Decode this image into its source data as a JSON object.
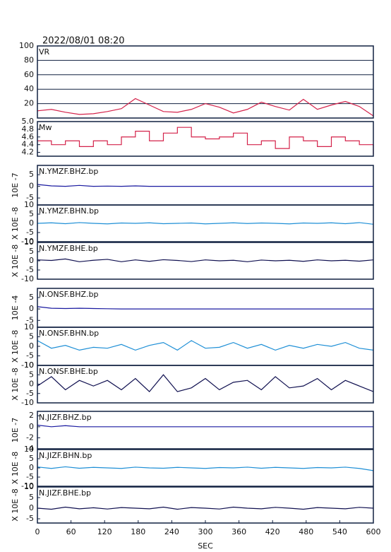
{
  "title": "2022/08/01 08:20",
  "chart_data": [
    {
      "type": "line",
      "label": "VR",
      "color": "#d4224a",
      "grid": true,
      "x": [
        0,
        25,
        50,
        75,
        100,
        125,
        150,
        175,
        200,
        225,
        250,
        275,
        300,
        325,
        350,
        375,
        400,
        425,
        450,
        475,
        500,
        525,
        550,
        575,
        600
      ],
      "values": [
        10,
        12,
        8,
        5,
        6,
        9,
        13,
        27,
        18,
        9,
        8,
        12,
        20,
        15,
        7,
        12,
        22,
        16,
        11,
        26,
        12,
        18,
        23,
        16,
        3
      ],
      "xlim": [
        0,
        600
      ],
      "ylim": [
        0,
        100
      ],
      "yticks": [
        20,
        40,
        60,
        80,
        100
      ]
    },
    {
      "type": "line",
      "label": "Mw",
      "color": "#d4224a",
      "step": true,
      "x": [
        0,
        25,
        50,
        75,
        100,
        125,
        150,
        175,
        200,
        225,
        250,
        275,
        300,
        325,
        350,
        375,
        400,
        425,
        450,
        475,
        500,
        525,
        550,
        575,
        600
      ],
      "values": [
        4.5,
        4.4,
        4.5,
        4.35,
        4.5,
        4.4,
        4.6,
        4.75,
        4.5,
        4.7,
        4.85,
        4.6,
        4.55,
        4.6,
        4.7,
        4.4,
        4.5,
        4.3,
        4.6,
        4.5,
        4.35,
        4.6,
        4.5,
        4.4,
        4.15
      ],
      "xlim": [
        0,
        600
      ],
      "ylim": [
        4.1,
        5.0
      ],
      "yticks": [
        4.2,
        4.4,
        4.6,
        4.8,
        {
          "value": 5,
          "label": "5.0"
        }
      ]
    },
    {
      "type": "line",
      "label": "N.YMZF.BHZ.bp",
      "ylabel": "10E -7",
      "color": "#1a1aa0",
      "x": [
        0,
        25,
        50,
        75,
        100,
        125,
        150,
        175,
        200,
        225,
        250,
        275,
        300,
        325,
        350,
        375,
        400,
        425,
        450,
        475,
        500,
        525,
        550,
        575,
        600
      ],
      "values": [
        0.8,
        0.2,
        0,
        0.4,
        0,
        0.1,
        0,
        0.2,
        0,
        0,
        0,
        0,
        0,
        0,
        0,
        0,
        0,
        0,
        0,
        0,
        0,
        0,
        0,
        0,
        0
      ],
      "xlim": [
        0,
        600
      ],
      "ylim": [
        -8,
        9
      ],
      "yticks": [
        -5,
        0,
        5
      ]
    },
    {
      "type": "line",
      "label": "N.YMZF.BHN.bp",
      "ylabel": "X 10E -8",
      "color": "#1e8fd6",
      "x": [
        0,
        25,
        50,
        75,
        100,
        125,
        150,
        175,
        200,
        225,
        250,
        275,
        300,
        325,
        350,
        375,
        400,
        425,
        450,
        475,
        500,
        525,
        550,
        575,
        600
      ],
      "values": [
        0,
        0.3,
        -0.2,
        0.4,
        0,
        -0.3,
        0.2,
        0,
        0.3,
        -0.2,
        0,
        0.2,
        -0.3,
        0,
        0.3,
        -0.1,
        0.2,
        0,
        -0.3,
        0.2,
        0,
        0.3,
        -0.2,
        0.4,
        -0.5
      ],
      "xlim": [
        0,
        600
      ],
      "ylim": [
        -10,
        10
      ],
      "yticks": [
        -10,
        -5,
        0,
        5,
        10
      ]
    },
    {
      "type": "line",
      "label": "N.YMZF.BHE.bp",
      "ylabel": "X 10E -8",
      "color": "#101050",
      "x": [
        0,
        25,
        50,
        75,
        100,
        125,
        150,
        175,
        200,
        225,
        250,
        275,
        300,
        325,
        350,
        375,
        400,
        425,
        450,
        475,
        500,
        525,
        550,
        575,
        600
      ],
      "values": [
        0.5,
        0.2,
        1,
        -0.5,
        0.3,
        0.8,
        -0.5,
        0.5,
        -0.3,
        0.6,
        0.2,
        -0.4,
        0.5,
        0,
        0.3,
        -0.5,
        0.4,
        0,
        0.3,
        -0.3,
        0.5,
        0,
        0.3,
        -0.2,
        0.5
      ],
      "xlim": [
        0,
        600
      ],
      "ylim": [
        -10,
        10
      ],
      "yticks": [
        -10,
        -5,
        0,
        5,
        10
      ]
    },
    {
      "type": "line",
      "label": "N.ONSF.BHZ.bp",
      "ylabel": "10E -4",
      "color": "#1a1aa0",
      "x": [
        0,
        25,
        50,
        75,
        100,
        125,
        150,
        175,
        200,
        225,
        250,
        275,
        300,
        325,
        350,
        375,
        400,
        425,
        450,
        475,
        500,
        525,
        550,
        575,
        600
      ],
      "values": [
        1,
        0.3,
        0.2,
        0.3,
        0.2,
        0.1,
        0,
        0,
        0,
        0,
        0,
        0,
        0,
        0,
        0,
        0,
        0,
        0,
        0,
        0,
        0,
        0,
        0,
        0,
        0
      ],
      "xlim": [
        0,
        600
      ],
      "ylim": [
        -8,
        9
      ],
      "yticks": [
        -5,
        0,
        5
      ]
    },
    {
      "type": "line",
      "label": "N.ONSF.BHN.bp",
      "ylabel": "X 10E -8",
      "color": "#1e8fd6",
      "x": [
        0,
        25,
        50,
        75,
        100,
        125,
        150,
        175,
        200,
        225,
        250,
        275,
        300,
        325,
        350,
        375,
        400,
        425,
        450,
        475,
        500,
        525,
        550,
        575,
        600
      ],
      "values": [
        3,
        -1,
        0.5,
        -2,
        -0.5,
        -1,
        1,
        -2,
        0.5,
        2,
        -2,
        3,
        -1,
        -0.5,
        2,
        -1,
        1,
        -2,
        0.5,
        -1,
        1,
        0,
        2,
        -1,
        -2
      ],
      "xlim": [
        0,
        600
      ],
      "ylim": [
        -10,
        10
      ],
      "yticks": [
        -10,
        -5,
        0,
        5,
        10
      ]
    },
    {
      "type": "line",
      "label": "N.ONSF.BHE.bp",
      "ylabel": "X 10E -8",
      "color": "#101050",
      "x": [
        0,
        25,
        50,
        75,
        100,
        125,
        150,
        175,
        200,
        225,
        250,
        275,
        300,
        325,
        350,
        375,
        400,
        425,
        450,
        475,
        500,
        525,
        550,
        575,
        600
      ],
      "values": [
        -1,
        4,
        -3,
        2,
        -1,
        2,
        -3,
        3,
        -4,
        5,
        -4,
        -2,
        3,
        -3,
        1,
        2,
        -3,
        4,
        -2,
        -1,
        3,
        -3,
        2,
        -1,
        -4
      ],
      "xlim": [
        0,
        600
      ],
      "ylim": [
        -10,
        10
      ],
      "yticks": [
        -10,
        -5,
        0,
        5,
        10
      ]
    },
    {
      "type": "line",
      "label": "N.JIZF.BHZ.bp",
      "ylabel": "10E -7",
      "color": "#1a1aa0",
      "x": [
        0,
        25,
        50,
        75,
        100,
        125,
        150,
        175,
        200,
        225,
        250,
        275,
        300,
        325,
        350,
        375,
        400,
        425,
        450,
        475,
        500,
        525,
        550,
        575,
        600
      ],
      "values": [
        0.3,
        0,
        0.2,
        0,
        0,
        0,
        0,
        0,
        0,
        0,
        0,
        0,
        0,
        0,
        0,
        0,
        0,
        0,
        0,
        0,
        0,
        0,
        0,
        0,
        0
      ],
      "xlim": [
        0,
        600
      ],
      "ylim": [
        -4,
        2.8
      ],
      "yticks": [
        -4,
        -2,
        0,
        2
      ]
    },
    {
      "type": "line",
      "label": "N.JIZF.BHN.bp",
      "ylabel": "X 10E -8",
      "color": "#1e8fd6",
      "x": [
        0,
        25,
        50,
        75,
        100,
        125,
        150,
        175,
        200,
        225,
        250,
        275,
        300,
        325,
        350,
        375,
        400,
        425,
        450,
        475,
        500,
        525,
        550,
        575,
        600
      ],
      "values": [
        0.5,
        -0.3,
        0.6,
        -0.2,
        0.3,
        0,
        -0.3,
        0.4,
        0,
        -0.2,
        0.3,
        0,
        -0.3,
        0.2,
        0,
        0.4,
        -0.2,
        0.3,
        0,
        -0.3,
        0.2,
        0,
        0.4,
        -0.3,
        -1.5
      ],
      "xlim": [
        0,
        600
      ],
      "ylim": [
        -10,
        10
      ],
      "yticks": [
        -10,
        -5,
        0,
        5,
        10
      ]
    },
    {
      "type": "line",
      "label": "N.JIZF.BHE.bp",
      "ylabel": "X 10E -8",
      "color": "#101050",
      "x": [
        0,
        25,
        50,
        75,
        100,
        125,
        150,
        175,
        200,
        225,
        250,
        275,
        300,
        325,
        350,
        375,
        400,
        425,
        450,
        475,
        500,
        525,
        550,
        575,
        600
      ],
      "values": [
        0,
        -0.5,
        0.5,
        -0.3,
        0.2,
        -0.4,
        0.3,
        0,
        -0.3,
        0.5,
        -0.5,
        0.3,
        0,
        -0.4,
        0.5,
        0,
        -0.3,
        0.4,
        0,
        -0.5,
        0.3,
        0,
        -0.3,
        0.4,
        0
      ],
      "xlim": [
        0,
        600
      ],
      "ylim": [
        -7,
        10
      ],
      "yticks": [
        -5,
        0,
        5,
        10
      ],
      "xticks": [
        0,
        60,
        120,
        180,
        240,
        300,
        360,
        420,
        480,
        540,
        600
      ],
      "xlabel": "SEC"
    }
  ]
}
